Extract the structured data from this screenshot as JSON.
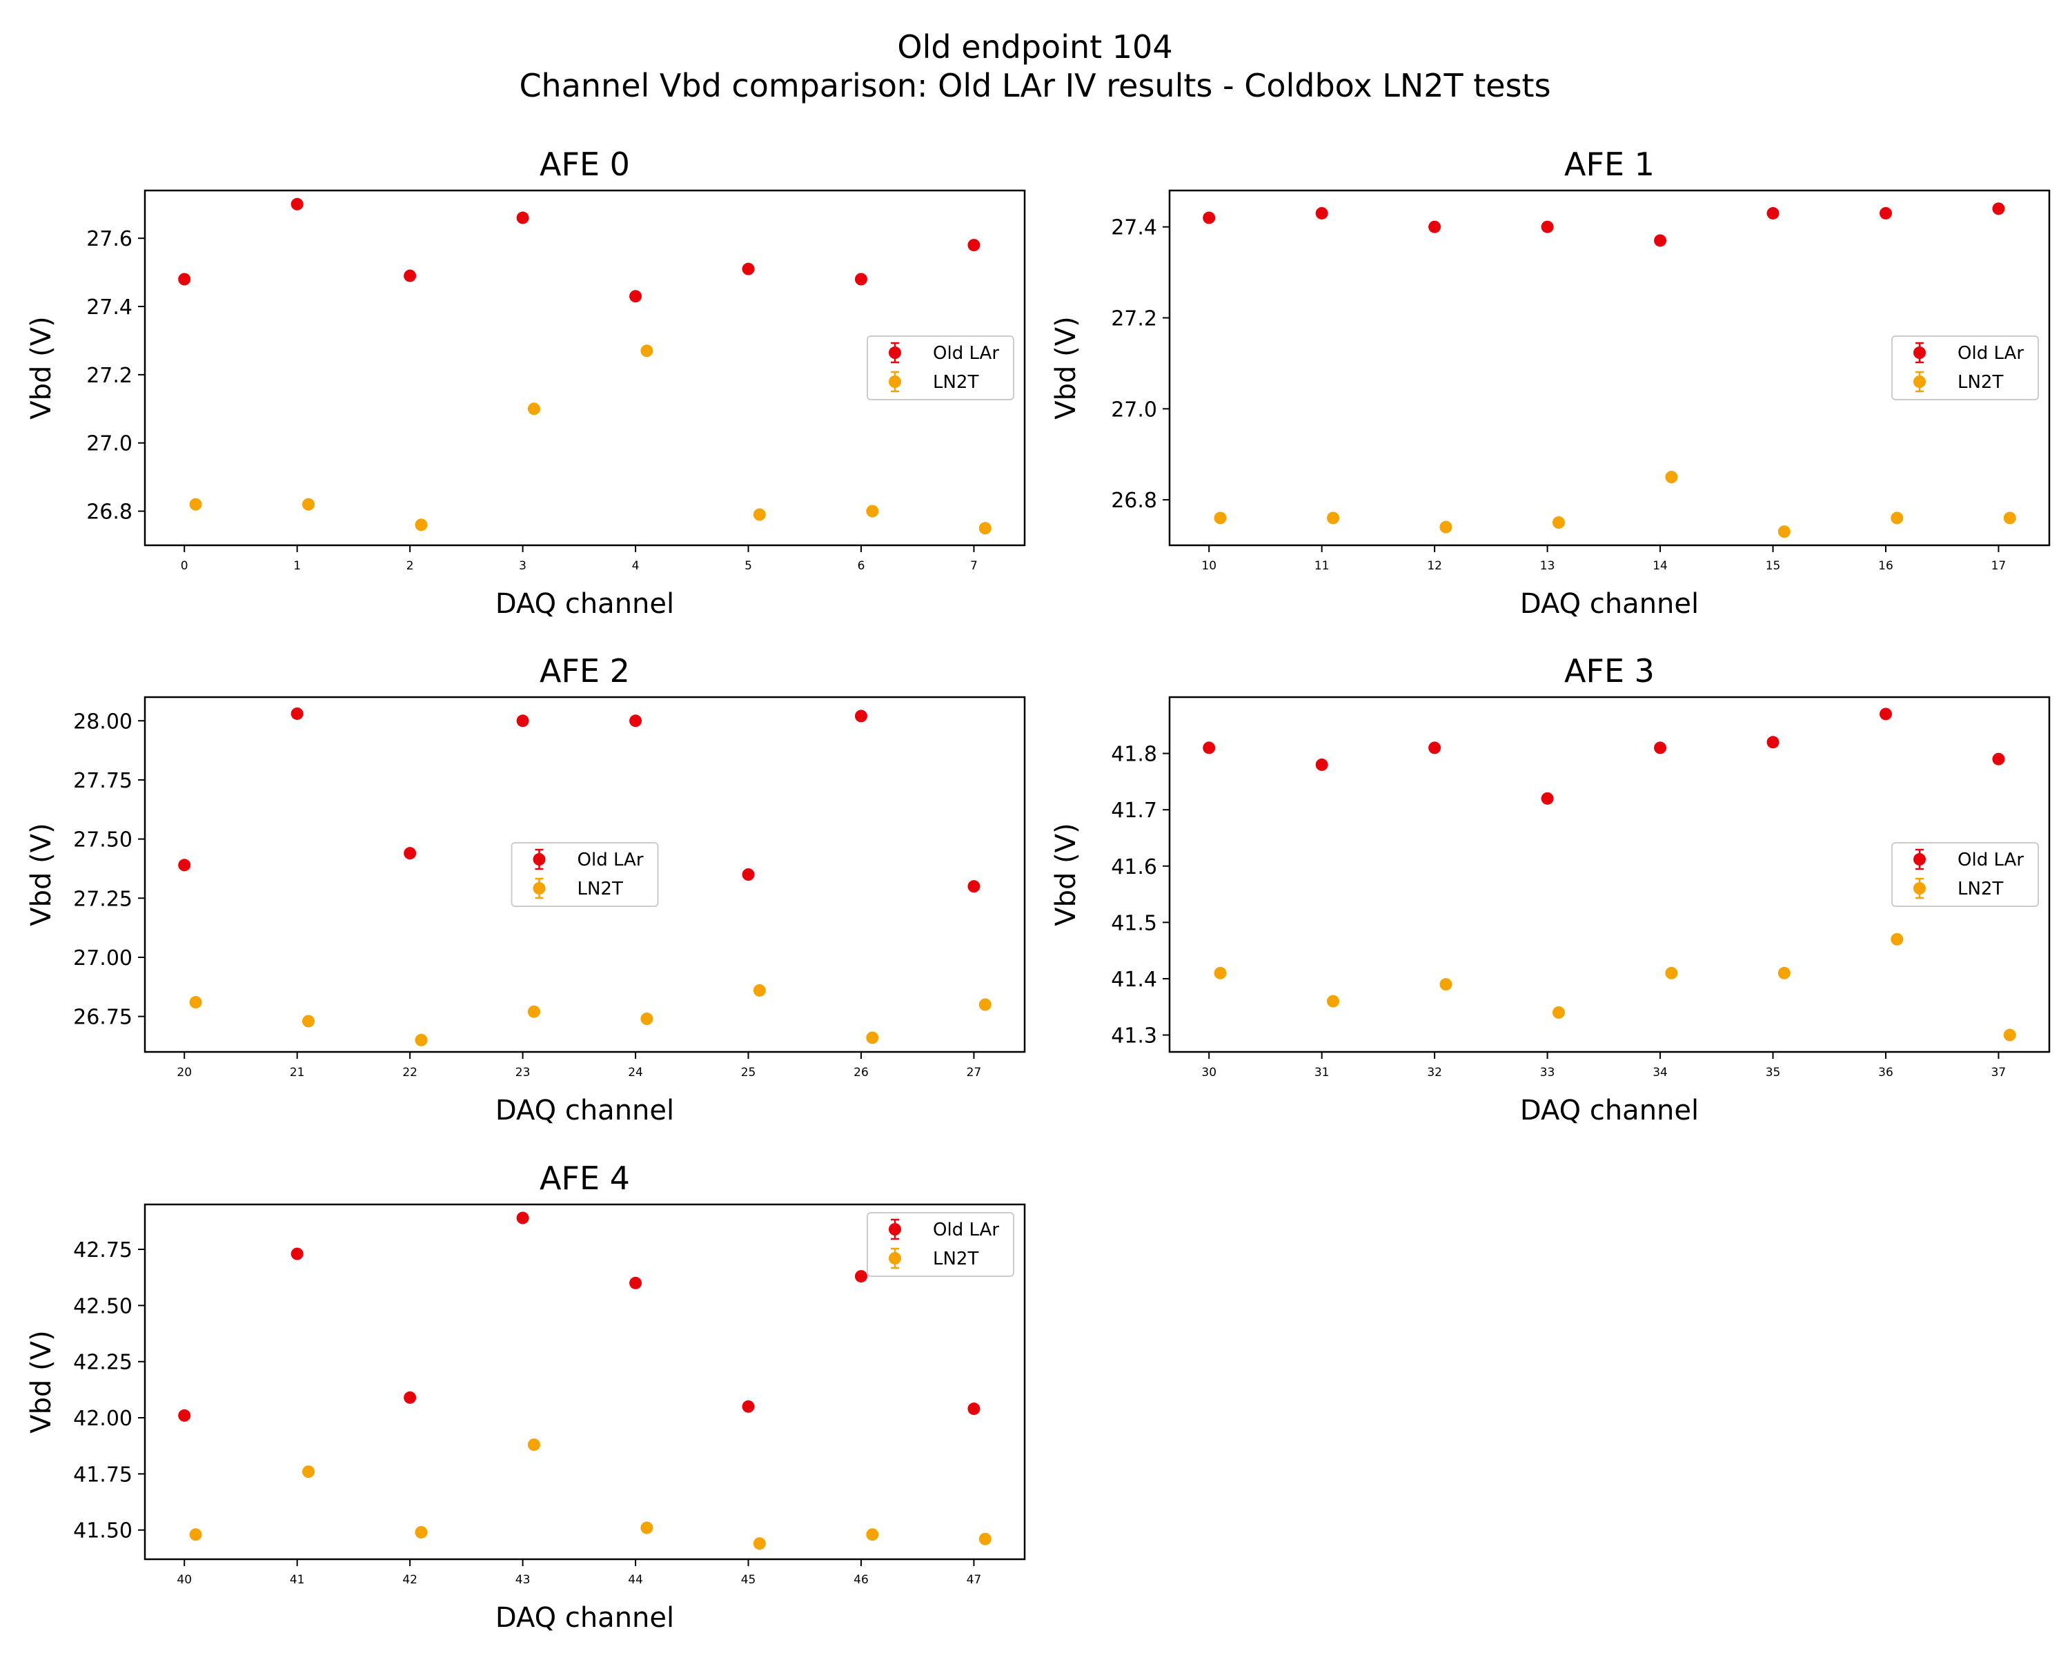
{
  "figure": {
    "title_line1": "Old endpoint 104",
    "title_line2": "Channel Vbd comparison: Old LAr IV results -  Coldbox LN2T tests"
  },
  "colors": {
    "old_lar": "#e8000b",
    "ln2t": "#f5a300",
    "axes": "#000000",
    "legend_border": "#cccccc"
  },
  "chart_data": [
    {
      "type": "scatter",
      "title": "AFE 0",
      "xlabel": "DAQ channel",
      "ylabel": "Vbd (V)",
      "xticks": [
        0,
        1,
        2,
        3,
        4,
        5,
        6,
        7
      ],
      "yticks": [
        26.8,
        27.0,
        27.2,
        27.4,
        27.6
      ],
      "ytick_labels": [
        "26.8",
        "27.0",
        "27.2",
        "27.4",
        "27.6"
      ],
      "xlim": [
        -0.35,
        7.45
      ],
      "ylim": [
        26.7,
        27.74
      ],
      "legend_position": "center-right",
      "series": [
        {
          "name": "Old LAr",
          "x": [
            0,
            1,
            2,
            3,
            4,
            5,
            6,
            7
          ],
          "y": [
            27.48,
            27.7,
            27.49,
            27.66,
            27.43,
            27.51,
            27.48,
            27.58
          ]
        },
        {
          "name": "LN2T",
          "x": [
            0.1,
            1.1,
            2.1,
            3.1,
            4.1,
            5.1,
            6.1,
            7.1
          ],
          "y": [
            26.82,
            26.82,
            26.76,
            27.1,
            27.27,
            26.79,
            26.8,
            26.75
          ]
        }
      ]
    },
    {
      "type": "scatter",
      "title": "AFE 1",
      "xlabel": "DAQ channel",
      "ylabel": "Vbd (V)",
      "xticks": [
        10,
        11,
        12,
        13,
        14,
        15,
        16,
        17
      ],
      "yticks": [
        26.8,
        27.0,
        27.2,
        27.4
      ],
      "ytick_labels": [
        "26.8",
        "27.0",
        "27.2",
        "27.4"
      ],
      "xlim": [
        9.65,
        17.45
      ],
      "ylim": [
        26.7,
        27.48
      ],
      "legend_position": "center-right",
      "series": [
        {
          "name": "Old LAr",
          "x": [
            10,
            11,
            12,
            13,
            14,
            15,
            16,
            17
          ],
          "y": [
            27.42,
            27.43,
            27.4,
            27.4,
            27.37,
            27.43,
            27.43,
            27.44
          ]
        },
        {
          "name": "LN2T",
          "x": [
            10.1,
            11.1,
            12.1,
            13.1,
            14.1,
            15.1,
            16.1,
            17.1
          ],
          "y": [
            26.76,
            26.76,
            26.74,
            26.75,
            26.85,
            26.73,
            26.76,
            26.76
          ]
        }
      ]
    },
    {
      "type": "scatter",
      "title": "AFE 2",
      "xlabel": "DAQ channel",
      "ylabel": "Vbd (V)",
      "xticks": [
        20,
        21,
        22,
        23,
        24,
        25,
        26,
        27
      ],
      "yticks": [
        26.75,
        27.0,
        27.25,
        27.5,
        27.75,
        28.0
      ],
      "ytick_labels": [
        "26.75",
        "27.00",
        "27.25",
        "27.50",
        "27.75",
        "28.00"
      ],
      "xlim": [
        19.65,
        27.45
      ],
      "ylim": [
        26.6,
        28.1
      ],
      "legend_position": "center",
      "series": [
        {
          "name": "Old LAr",
          "x": [
            20,
            21,
            22,
            23,
            24,
            25,
            26,
            27
          ],
          "y": [
            27.39,
            28.03,
            27.44,
            28.0,
            28.0,
            27.35,
            28.02,
            27.3
          ]
        },
        {
          "name": "LN2T",
          "x": [
            20.1,
            21.1,
            22.1,
            23.1,
            24.1,
            25.1,
            26.1,
            27.1
          ],
          "y": [
            26.81,
            26.73,
            26.65,
            26.77,
            26.74,
            26.86,
            26.66,
            26.8
          ]
        }
      ]
    },
    {
      "type": "scatter",
      "title": "AFE 3",
      "xlabel": "DAQ channel",
      "ylabel": "Vbd (V)",
      "xticks": [
        30,
        31,
        32,
        33,
        34,
        35,
        36,
        37
      ],
      "yticks": [
        41.3,
        41.4,
        41.5,
        41.6,
        41.7,
        41.8
      ],
      "ytick_labels": [
        "41.3",
        "41.4",
        "41.5",
        "41.6",
        "41.7",
        "41.8"
      ],
      "xlim": [
        29.65,
        37.45
      ],
      "ylim": [
        41.27,
        41.9
      ],
      "legend_position": "center-right",
      "series": [
        {
          "name": "Old LAr",
          "x": [
            30,
            31,
            32,
            33,
            34,
            35,
            36,
            37
          ],
          "y": [
            41.81,
            41.78,
            41.81,
            41.72,
            41.81,
            41.82,
            41.87,
            41.79
          ]
        },
        {
          "name": "LN2T",
          "x": [
            30.1,
            31.1,
            32.1,
            33.1,
            34.1,
            35.1,
            36.1,
            37.1
          ],
          "y": [
            41.41,
            41.36,
            41.39,
            41.34,
            41.41,
            41.41,
            41.47,
            41.3
          ]
        }
      ]
    },
    {
      "type": "scatter",
      "title": "AFE 4",
      "xlabel": "DAQ channel",
      "ylabel": "Vbd (V)",
      "xticks": [
        40,
        41,
        42,
        43,
        44,
        45,
        46,
        47
      ],
      "yticks": [
        41.5,
        41.75,
        42.0,
        42.25,
        42.5,
        42.75
      ],
      "ytick_labels": [
        "41.50",
        "41.75",
        "42.00",
        "42.25",
        "42.50",
        "42.75"
      ],
      "xlim": [
        39.65,
        47.45
      ],
      "ylim": [
        41.37,
        42.95
      ],
      "legend_position": "upper right",
      "series": [
        {
          "name": "Old LAr",
          "x": [
            40,
            41,
            42,
            43,
            44,
            45,
            46,
            47
          ],
          "y": [
            42.01,
            42.73,
            42.09,
            42.89,
            42.6,
            42.05,
            42.63,
            42.04
          ]
        },
        {
          "name": "LN2T",
          "x": [
            40.1,
            41.1,
            42.1,
            43.1,
            44.1,
            45.1,
            46.1,
            47.1
          ],
          "y": [
            41.48,
            41.76,
            41.49,
            41.88,
            41.51,
            41.44,
            41.48,
            41.46
          ]
        }
      ]
    }
  ]
}
